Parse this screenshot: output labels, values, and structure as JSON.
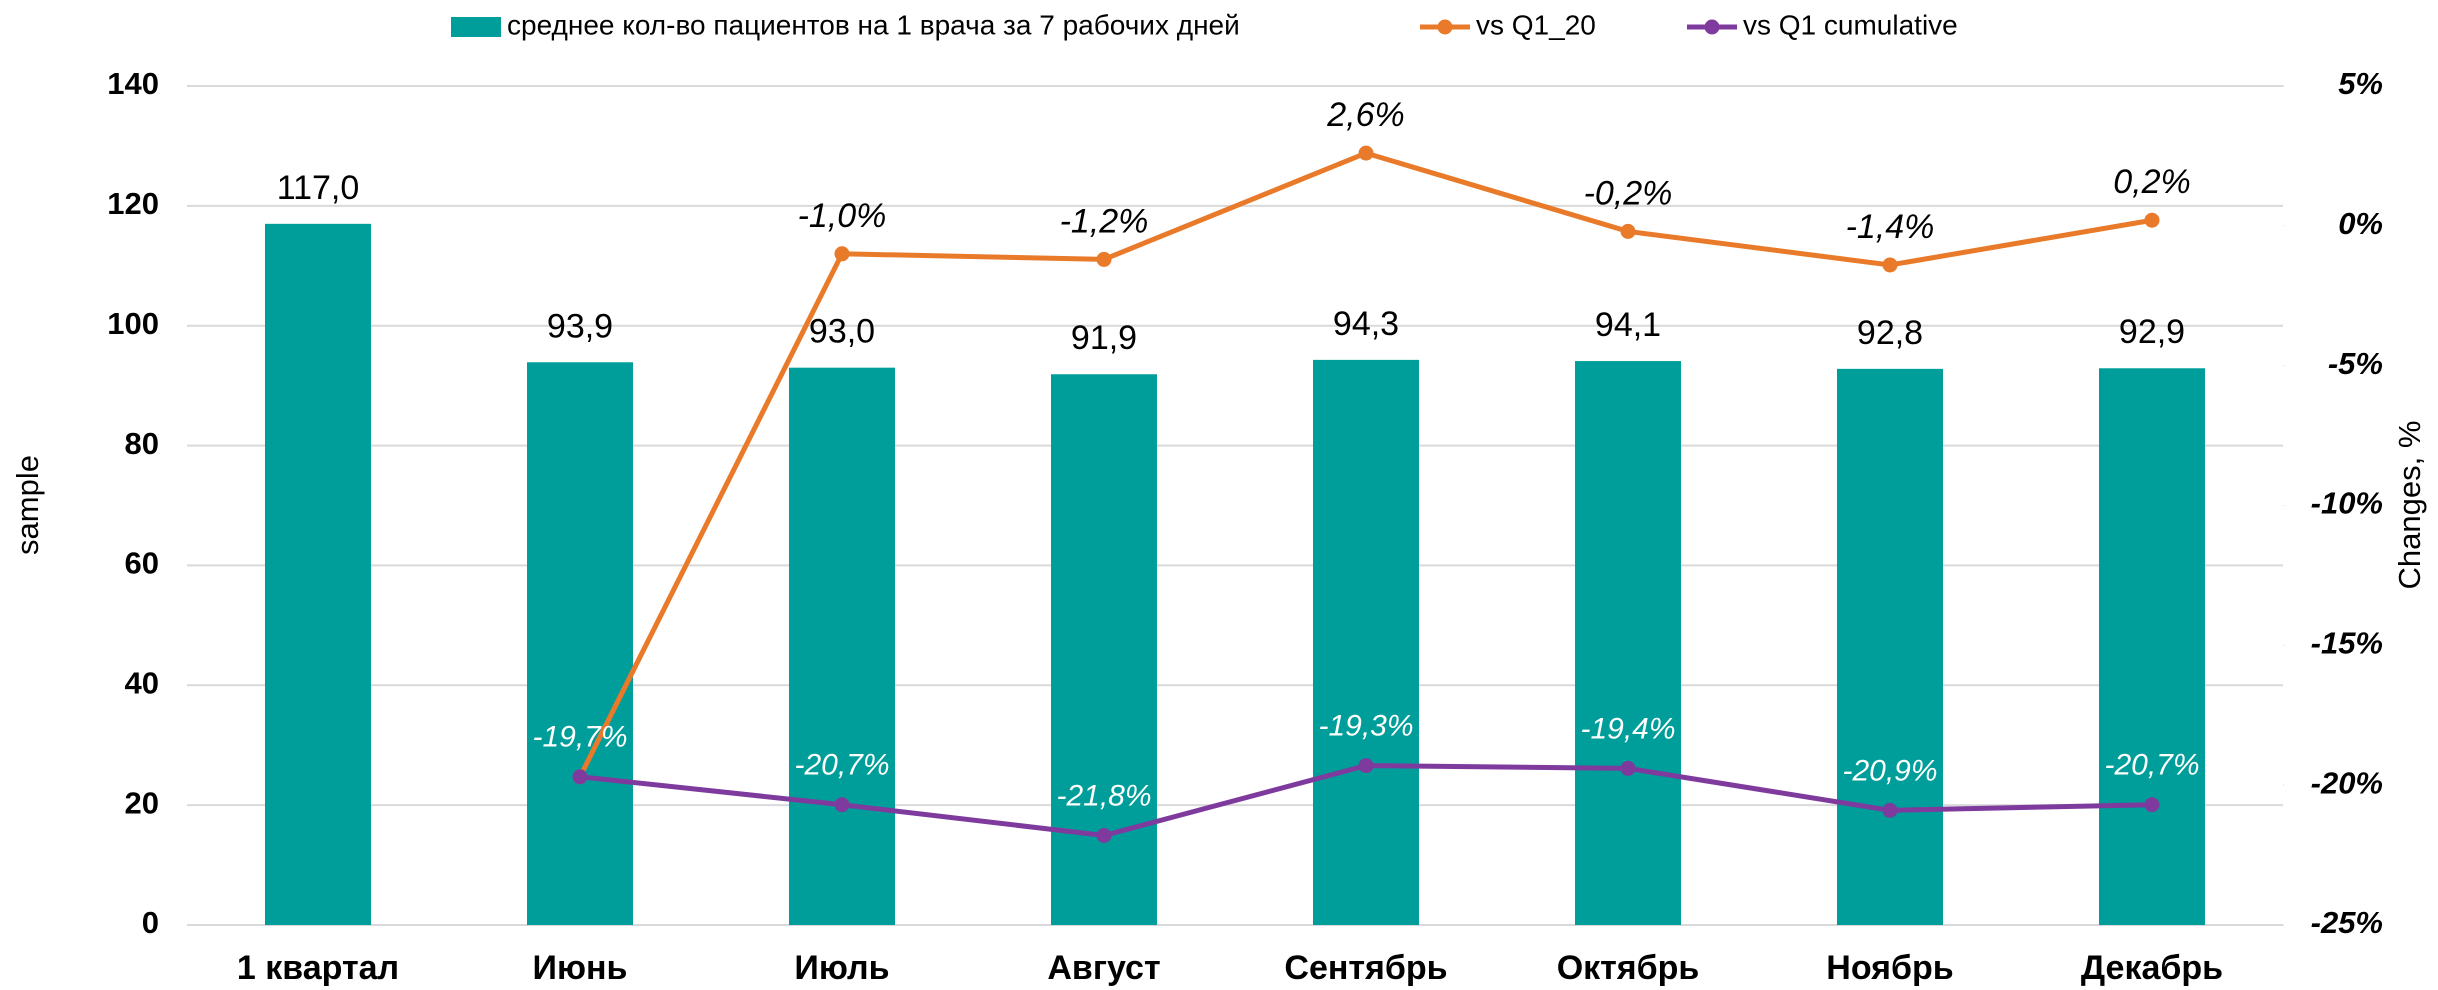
{
  "chart_data": {
    "type": "bar",
    "categories": [
      "1 квартал",
      "Июнь",
      "Июль",
      "Август",
      "Сентябрь",
      "Октябрь",
      "Ноябрь",
      "Декабрь"
    ],
    "series": [
      {
        "name": "среднее кол-во пациентов на 1 врача за 7 рабочих дней",
        "type": "bar",
        "color": "#009e9a",
        "values": [
          117.0,
          93.9,
          93.0,
          91.9,
          94.3,
          94.1,
          92.8,
          92.9
        ],
        "value_labels": [
          "117,0",
          "93,9",
          "93,0",
          "91,9",
          "94,3",
          "94,1",
          "92,8",
          "92,9"
        ]
      },
      {
        "name": "vs Q1_20",
        "type": "line",
        "axis": "y2",
        "color": "#e87a2a",
        "values": [
          null,
          -19.7,
          -1.0,
          -1.2,
          2.6,
          -0.2,
          -1.4,
          0.2
        ],
        "value_labels": [
          null,
          null,
          "-1,0%",
          "-1,2%",
          "2,6%",
          "-0,2%",
          "-1,4%",
          "0,2%"
        ]
      },
      {
        "name": "vs Q1 cumulative",
        "type": "line",
        "axis": "y2",
        "color": "#7f3a9e",
        "values": [
          null,
          -19.7,
          -20.7,
          -21.8,
          -19.3,
          -19.4,
          -20.9,
          -20.7
        ],
        "value_labels": [
          null,
          "-19,7%",
          "-20,7%",
          "-21,8%",
          "-19,3%",
          "-19,4%",
          "-20,9%",
          "-20,7%"
        ]
      }
    ],
    "y_label": "sample",
    "y2_label": "Changes, %",
    "ylim": [
      0,
      140
    ],
    "yticks": [
      0,
      20,
      40,
      60,
      80,
      100,
      120,
      140
    ],
    "y2lim": [
      -25,
      5
    ],
    "y2ticks": [
      {
        "value": 5,
        "label": "5%"
      },
      {
        "value": 0,
        "label": "0%"
      },
      {
        "value": -5,
        "label": "-5%"
      },
      {
        "value": -10,
        "label": "-10%"
      },
      {
        "value": -15,
        "label": "-15%"
      },
      {
        "value": -20,
        "label": "-20%"
      },
      {
        "value": -25,
        "label": "-25%"
      }
    ],
    "grid": true,
    "legend": "top"
  }
}
